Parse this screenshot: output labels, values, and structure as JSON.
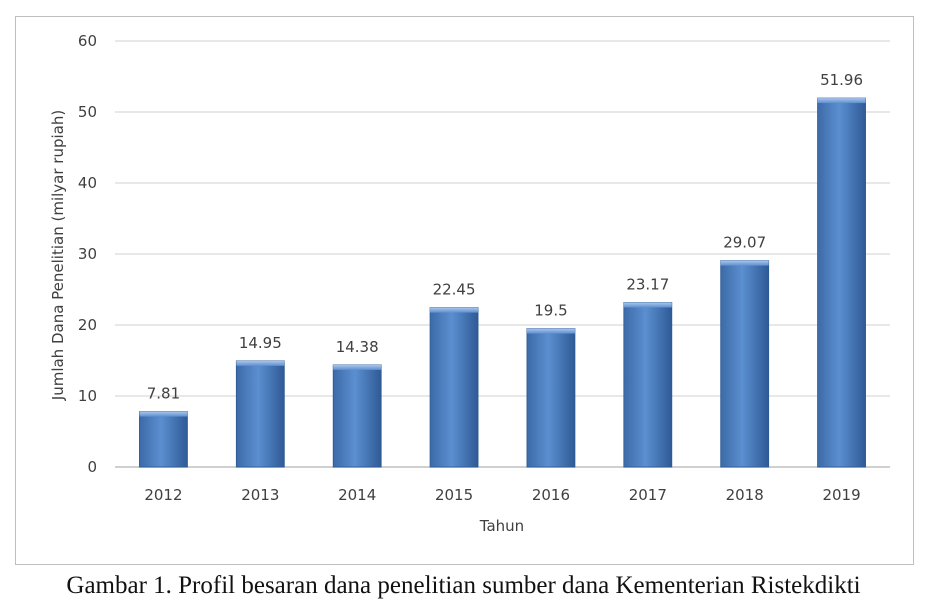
{
  "chart_data": {
    "type": "bar",
    "categories": [
      "2012",
      "2013",
      "2014",
      "2015",
      "2016",
      "2017",
      "2018",
      "2019"
    ],
    "values": [
      7.81,
      14.95,
      14.38,
      22.45,
      19.5,
      23.17,
      29.07,
      51.96
    ],
    "data_labels": [
      "7.81",
      "14.95",
      "14.38",
      "22.45",
      "19.5",
      "23.17",
      "29.07",
      "51.96"
    ],
    "title": "",
    "xlabel": "Tahun",
    "ylabel": "Jumlah Dana Penelitian (milyar rupiah)",
    "ylim": [
      0,
      60
    ],
    "yticks": [
      0,
      10,
      20,
      30,
      40,
      50,
      60
    ],
    "grid": true,
    "legend": "none",
    "bar_color": "#4f81bd"
  },
  "caption": "Gambar 1. Profil besaran dana penelitian sumber dana Kementerian Ristekdikti"
}
